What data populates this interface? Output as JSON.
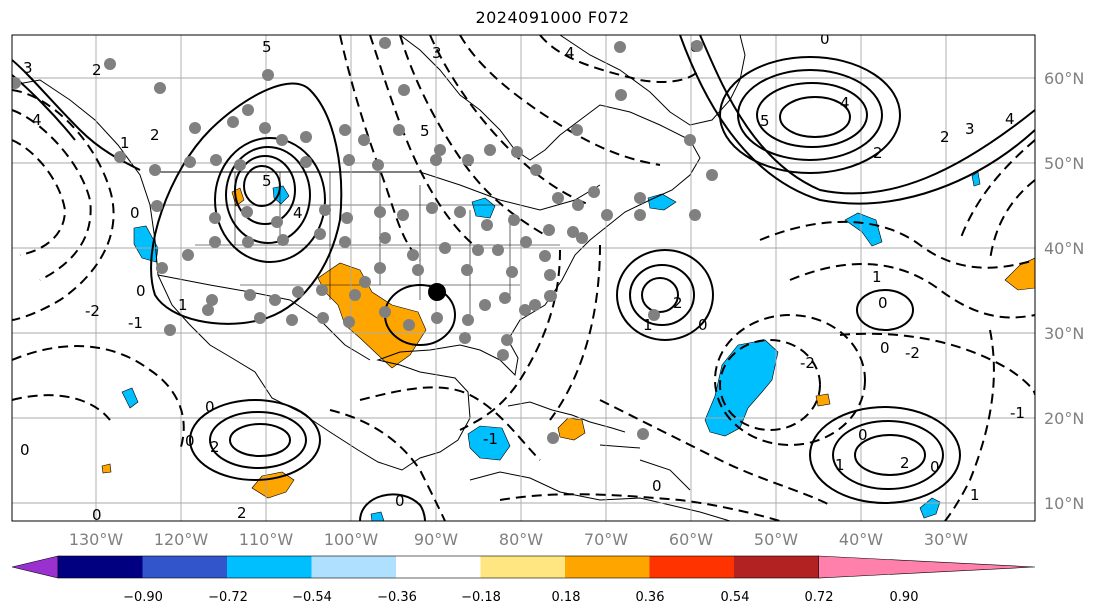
{
  "title": "2024091000 F072",
  "map": {
    "projection": "PlateCarree",
    "lon_range": [
      -138,
      -17
    ],
    "lat_range": [
      7,
      65
    ],
    "lat_labels": [
      "10°N",
      "20°N",
      "30°N",
      "40°N",
      "50°N",
      "60°N"
    ],
    "lon_labels": [
      "130°W",
      "120°W",
      "110°W",
      "100°W",
      "90°W",
      "80°W",
      "70°W",
      "60°W",
      "50°W",
      "40°W",
      "30°W"
    ],
    "grid": true,
    "contour_labels": [
      "0",
      "1",
      "2",
      "3",
      "4",
      "5",
      "-1",
      "-2"
    ],
    "marker": {
      "name": "point-marker",
      "lon": -89.5,
      "lat": 34.5,
      "color": "#000000"
    },
    "station_dot_color": "#808080"
  },
  "colorbar": {
    "colors": [
      "#9b30d0",
      "#000080",
      "#3355cc",
      "#00bfff",
      "#b0e0ff",
      "#ffffff",
      "#ffe680",
      "#ffa500",
      "#ff3300",
      "#b22222",
      "#ff80aa"
    ],
    "ticks": [
      "−0.90",
      "−0.72",
      "−0.54",
      "−0.36",
      "−0.18",
      "0.18",
      "0.36",
      "0.54",
      "0.72",
      "0.90"
    ],
    "extend": "both"
  }
}
